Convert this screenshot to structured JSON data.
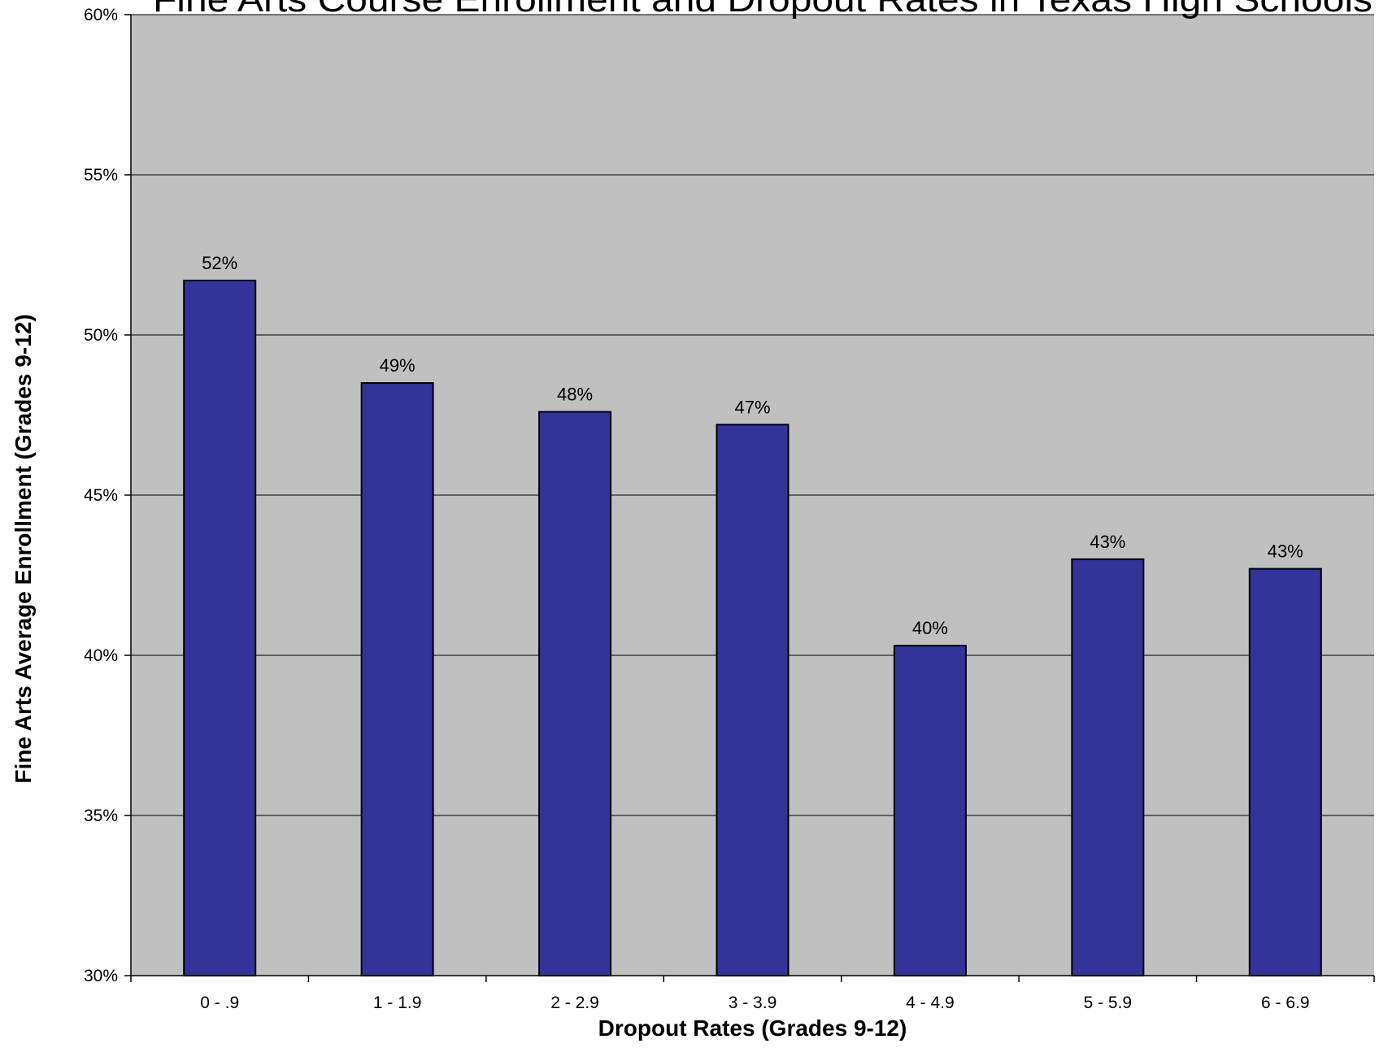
{
  "chart_data": {
    "type": "bar",
    "title": "Fine Arts Course Enrollment and Dropout Rates in Texas High Schools",
    "xlabel": "Dropout Rates (Grades 9-12)",
    "ylabel": "Fine Arts Average Enrollment (Grades 9-12)",
    "categories": [
      "0 - .9",
      "1 - 1.9",
      "2 - 2.9",
      "3 - 3.9",
      "4 - 4.9",
      "5 - 5.9",
      "6 - 6.9"
    ],
    "values": [
      0.517,
      0.485,
      0.476,
      0.472,
      0.403,
      0.43,
      0.427
    ],
    "data_labels": [
      "52%",
      "49%",
      "48%",
      "47%",
      "40%",
      "43%",
      "43%"
    ],
    "ylim": [
      0.3,
      0.6
    ],
    "yticks": [
      0.3,
      0.35,
      0.4,
      0.45,
      0.5,
      0.55,
      0.6
    ],
    "ytick_labels": [
      "30%",
      "35%",
      "40%",
      "45%",
      "50%",
      "55%",
      "60%"
    ],
    "grid": true,
    "legend": "none",
    "colors": {
      "bar_fill": "#333399",
      "bar_stroke": "#000000",
      "plot_background": "#c0c0c0",
      "gridline": "#000000"
    }
  }
}
